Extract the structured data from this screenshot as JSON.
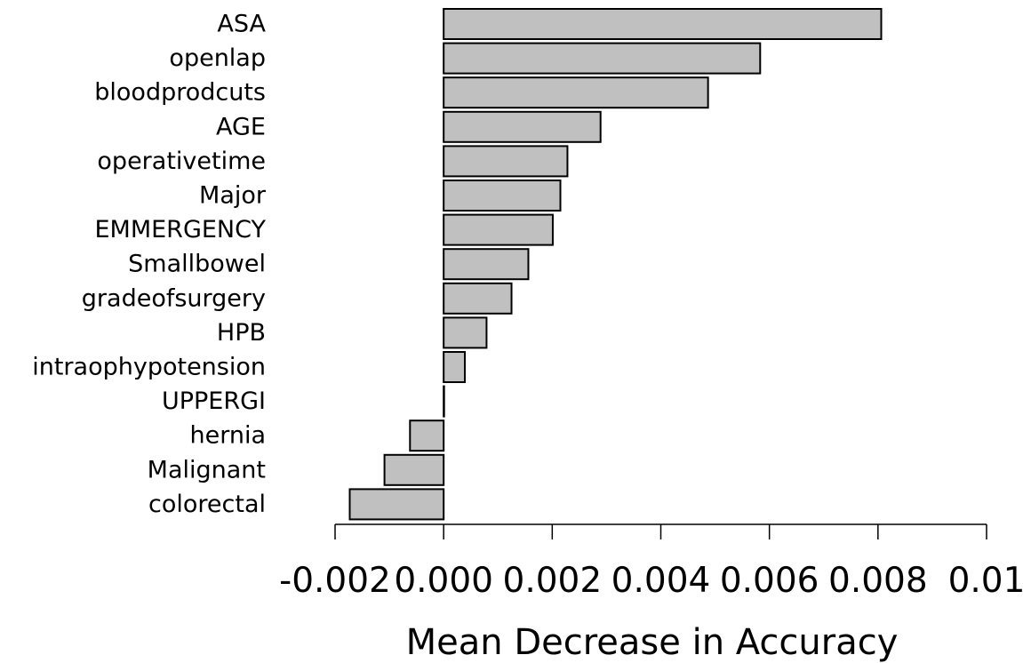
{
  "chart_data": {
    "type": "bar",
    "orientation": "horizontal",
    "title": "",
    "xlabel": "Mean Decrease in Accuracy",
    "ylabel": "",
    "xlim": [
      -0.002,
      0.01
    ],
    "xticks": [
      -0.002,
      0.0,
      0.002,
      0.004,
      0.006,
      0.008,
      0.01
    ],
    "xtick_labels": [
      "-0.002",
      "0.000",
      "0.002",
      "0.004",
      "0.006",
      "0.008",
      "0.01"
    ],
    "grid": false,
    "categories": [
      "ASA",
      "openlap",
      "bloodprodcuts",
      "AGE",
      "operativetime",
      "Major",
      "EMMERGENCY",
      "Smallbowel",
      "gradeofsurgery",
      "HPB",
      "intraophypotension",
      "UPPERGI",
      "hernia",
      "Malignant",
      "colorectal"
    ],
    "values": [
      0.00806,
      0.00583,
      0.00487,
      0.00289,
      0.00228,
      0.00215,
      0.00201,
      0.00156,
      0.00125,
      0.00079,
      0.00039,
      0.0,
      -0.00062,
      -0.00109,
      -0.00173
    ],
    "colors": {
      "bar_fill": "#c0c0c0",
      "bar_stroke": "#000000",
      "axis": "#000000"
    }
  }
}
